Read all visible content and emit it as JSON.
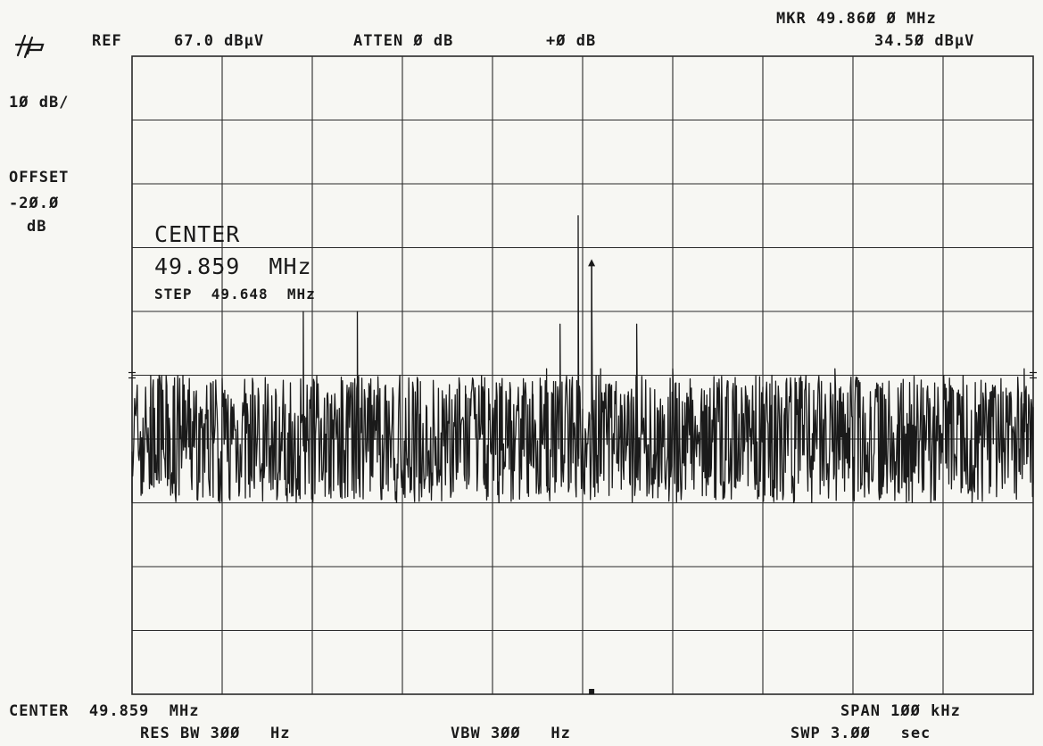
{
  "header": {
    "logo": "hp",
    "ref": "REF",
    "ref_level": "67.0 dBµV",
    "atten": "ATTEN Ø dB",
    "ext_gain": "+Ø dB",
    "marker_freq": "MKR 49.86Ø Ø MHz",
    "marker_level": "34.5Ø dBµV"
  },
  "left_panel": {
    "scale": "1Ø dB/",
    "offset_label": "OFFSET",
    "offset_value": "-2Ø.Ø",
    "offset_unit": "dB"
  },
  "annotation": {
    "center_label": "CENTER",
    "center_value": "49.859  MHz",
    "step": "STEP  49.648  MHz"
  },
  "footer": {
    "center": "CENTER  49.859  MHz",
    "res_bw": "RES BW 3ØØ   Hz",
    "vbw": "VBW 3ØØ   Hz",
    "span": "SPAN 1ØØ kHz",
    "sweep": "SWP 3.ØØ   sec"
  },
  "colors": {
    "ink": "#1a1a1a",
    "paper": "#f7f7f3",
    "grid": "#2a2a2a"
  },
  "chart_data": {
    "type": "line",
    "title": "",
    "xlabel": "",
    "ylabel": "",
    "x_unit": "MHz",
    "y_unit": "dBµV",
    "xlim": [
      49.809,
      49.909
    ],
    "ylim": [
      -33.0,
      67.0
    ],
    "x_divisions": 10,
    "y_divisions": 10,
    "grid": true,
    "marker": {
      "x": 49.86,
      "y": 34.5
    },
    "noise_floor": {
      "mean": 7.0,
      "min": -3.0,
      "max": 17.0
    },
    "series": [
      {
        "values_x": [
          49.809,
          49.811,
          49.811,
          49.812,
          49.813,
          49.818,
          49.826,
          49.828,
          49.829,
          49.831,
          49.834,
          49.838,
          49.841,
          49.844,
          49.846,
          49.848,
          49.85,
          49.853,
          49.8535,
          49.855,
          49.856,
          49.8565,
          49.8575,
          49.858,
          49.8585,
          49.859,
          49.86,
          49.8605,
          49.861,
          49.863,
          49.864,
          49.865,
          49.869,
          49.874,
          49.88,
          49.887,
          49.891,
          49.894,
          49.9,
          49.906,
          49.908,
          49.909
        ],
        "values_y": [
          5.0,
          12.0,
          0.0,
          17.0,
          5.0,
          16.0,
          8.0,
          27.0,
          4.0,
          8.0,
          27.0,
          5.0,
          16.0,
          4.0,
          13.0,
          1.0,
          13.0,
          6.0,
          14.0,
          18.0,
          16.0,
          25.0,
          5.0,
          7.0,
          42.0,
          8.0,
          34.5,
          8.0,
          18.0,
          2.0,
          6.0,
          25.0,
          18.0,
          15.0,
          17.0,
          18.0,
          12.0,
          15.0,
          15.0,
          12.0,
          18.0,
          12.0
        ]
      }
    ]
  }
}
